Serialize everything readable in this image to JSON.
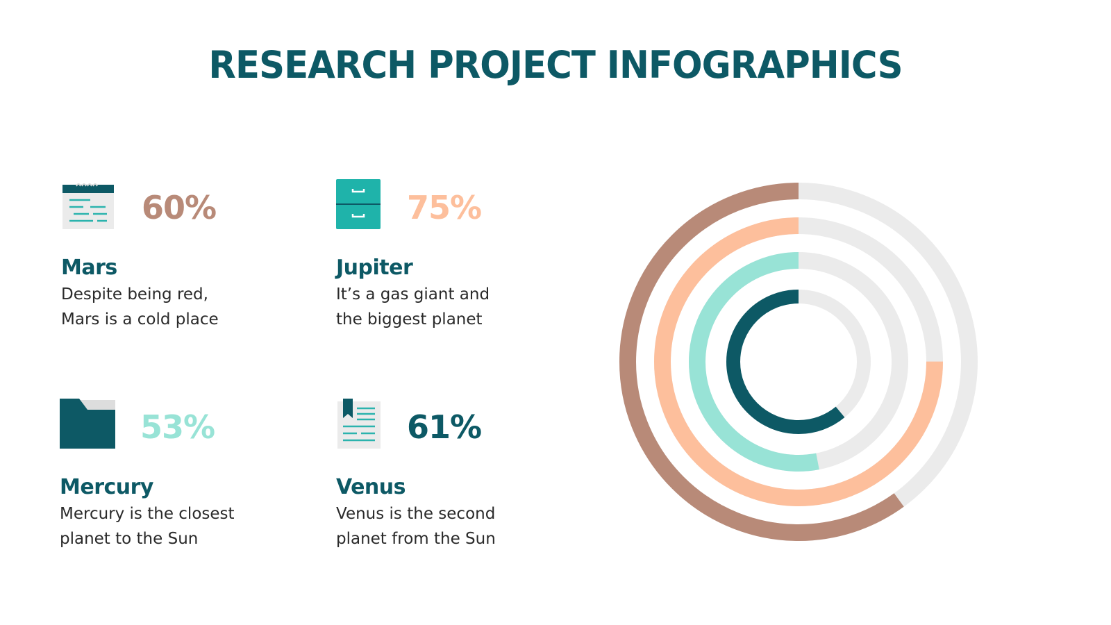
{
  "title": "RESEARCH PROJECT INFOGRAPHICS",
  "colors": {
    "title": "#0d5965",
    "mars": "#b88a78",
    "jupiter": "#fdbf9c",
    "mercury": "#98e3d6",
    "venus": "#0d5965",
    "track": "#ebebeb"
  },
  "cards": [
    {
      "name": "Mars",
      "percent": "60%",
      "desc_line1": "Despite being red,",
      "desc_line2": "Mars is a cold place",
      "icon": "notepad-icon"
    },
    {
      "name": "Jupiter",
      "percent": "75%",
      "desc_line1": "It’s a gas giant and",
      "desc_line2": "the biggest planet",
      "icon": "drawer-cabinet-icon"
    },
    {
      "name": "Mercury",
      "percent": "53%",
      "desc_line1": "Mercury is the closest",
      "desc_line2": "planet to the Sun",
      "icon": "folder-icon"
    },
    {
      "name": "Venus",
      "percent": "61%",
      "desc_line1": "Venus is the second",
      "desc_line2": "planet from the Sun",
      "icon": "bookmark-document-icon"
    }
  ],
  "chart_data": {
    "type": "radial-bar",
    "title": "",
    "categories": [
      "Mars",
      "Jupiter",
      "Mercury",
      "Venus"
    ],
    "values": [
      60,
      75,
      53,
      61
    ],
    "unit": "%",
    "max": 100,
    "ring_order_outer_to_inner": [
      "Mars",
      "Jupiter",
      "Mercury",
      "Venus"
    ],
    "colors": [
      "#b88a78",
      "#fdbf9c",
      "#98e3d6",
      "#0d5965"
    ],
    "track_color": "#ebebeb",
    "start_angle": "top",
    "direction": "counterclockwise",
    "legend": "none"
  }
}
